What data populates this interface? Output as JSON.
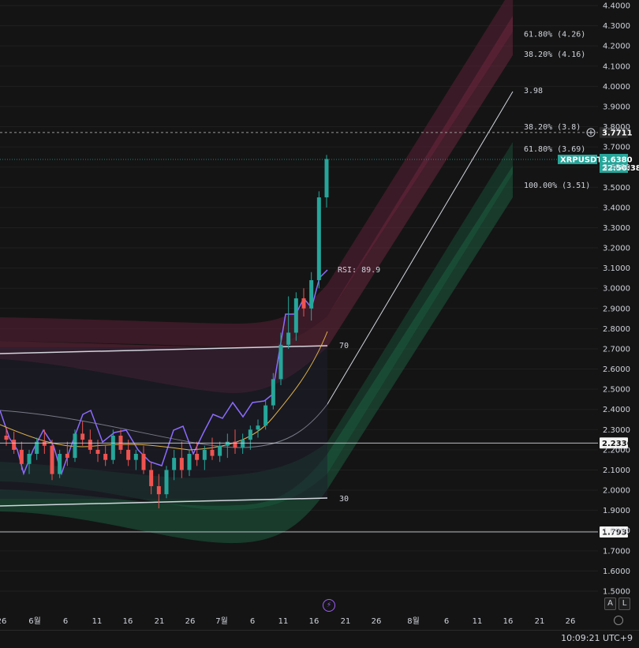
{
  "symbol": "XRPUSDT.P",
  "last_price": "3.6380",
  "countdown": "22:50:38",
  "crosshair_price": "3.7711",
  "clock": "10:09:21 UTC+9",
  "buttons": {
    "auto": "A",
    "log": "L"
  },
  "icons": {
    "crosshair": "plus-circle-icon",
    "lightning": "lightning-icon",
    "settings": "gear-icon"
  },
  "colors": {
    "up": "#26a69a",
    "down": "#ef5350",
    "last_price_tag": "#26a69a",
    "rsi": "#8c6bff",
    "ma": "#e0b34a",
    "basis": "#d1d4dc"
  },
  "chart_data": {
    "type": "candlestick",
    "ylim": [
      1.42,
      4.4
    ],
    "y_ticks": [
      "4.4000",
      "4.3000",
      "4.2000",
      "4.1000",
      "4.0000",
      "3.9000",
      "3.8000",
      "3.7000",
      "3.6000",
      "3.5000",
      "3.4000",
      "3.3000",
      "3.2000",
      "3.1000",
      "3.0000",
      "2.9000",
      "2.8000",
      "2.7000",
      "2.6000",
      "2.5000",
      "2.4000",
      "2.3000",
      "2.2000",
      "2.1000",
      "2.0000",
      "1.9000",
      "1.8000",
      "1.7000",
      "1.6000",
      "1.5000"
    ],
    "x_ticks": [
      "26",
      "6월",
      "6",
      "11",
      "16",
      "21",
      "26",
      "7월",
      "6",
      "11",
      "16",
      "21",
      "26",
      "8월",
      "6",
      "11",
      "16",
      "21",
      "26"
    ],
    "horizontal_levels": [
      {
        "price": 2.2336,
        "label": "2.2336"
      },
      {
        "price": 1.7933,
        "label": "1.7933"
      }
    ],
    "fib_levels": [
      {
        "label": "61.80% (4.26)",
        "price": 4.26
      },
      {
        "label": "38.20% (4.16)",
        "price": 4.16
      },
      {
        "label": "3.98",
        "price": 3.98
      },
      {
        "label": "38.20% (3.8)",
        "price": 3.8
      },
      {
        "label": "61.80% (3.69)",
        "price": 3.69
      },
      {
        "label": "100.00% (3.51)",
        "price": 3.51
      }
    ],
    "rsi": {
      "label": "RSI: 89.9",
      "value": 89.9,
      "upper": 70,
      "lower": 30,
      "upper_label": "70",
      "lower_label": "30"
    },
    "candles": [
      [
        2.27,
        2.31,
        2.22,
        2.25
      ],
      [
        2.25,
        2.29,
        2.18,
        2.2
      ],
      [
        2.2,
        2.24,
        2.1,
        2.13
      ],
      [
        2.13,
        2.2,
        2.08,
        2.18
      ],
      [
        2.18,
        2.26,
        2.15,
        2.24
      ],
      [
        2.24,
        2.3,
        2.18,
        2.22
      ],
      [
        2.22,
        2.25,
        2.05,
        2.08
      ],
      [
        2.08,
        2.2,
        2.06,
        2.18
      ],
      [
        2.18,
        2.24,
        2.12,
        2.16
      ],
      [
        2.16,
        2.3,
        2.14,
        2.28
      ],
      [
        2.28,
        2.34,
        2.22,
        2.25
      ],
      [
        2.25,
        2.3,
        2.18,
        2.2
      ],
      [
        2.2,
        2.25,
        2.14,
        2.18
      ],
      [
        2.18,
        2.22,
        2.12,
        2.15
      ],
      [
        2.15,
        2.3,
        2.13,
        2.27
      ],
      [
        2.27,
        2.3,
        2.18,
        2.2
      ],
      [
        2.2,
        2.25,
        2.12,
        2.15
      ],
      [
        2.15,
        2.2,
        2.1,
        2.18
      ],
      [
        2.18,
        2.22,
        2.08,
        2.1
      ],
      [
        2.1,
        2.14,
        1.98,
        2.02
      ],
      [
        2.02,
        2.08,
        1.91,
        1.98
      ],
      [
        1.98,
        2.12,
        1.96,
        2.1
      ],
      [
        2.1,
        2.2,
        2.05,
        2.16
      ],
      [
        2.16,
        2.24,
        2.06,
        2.1
      ],
      [
        2.1,
        2.2,
        2.07,
        2.18
      ],
      [
        2.18,
        2.24,
        2.12,
        2.15
      ],
      [
        2.15,
        2.22,
        2.1,
        2.2
      ],
      [
        2.2,
        2.26,
        2.15,
        2.17
      ],
      [
        2.17,
        2.24,
        2.14,
        2.22
      ],
      [
        2.22,
        2.28,
        2.16,
        2.24
      ],
      [
        2.24,
        2.3,
        2.18,
        2.21
      ],
      [
        2.21,
        2.28,
        2.18,
        2.25
      ],
      [
        2.25,
        2.32,
        2.2,
        2.3
      ],
      [
        2.3,
        2.35,
        2.26,
        2.32
      ],
      [
        2.32,
        2.45,
        2.3,
        2.42
      ],
      [
        2.42,
        2.58,
        2.4,
        2.55
      ],
      [
        2.55,
        2.78,
        2.52,
        2.72
      ],
      [
        2.72,
        2.96,
        2.7,
        2.78
      ],
      [
        2.78,
        2.98,
        2.74,
        2.95
      ],
      [
        2.95,
        3.0,
        2.86,
        2.9
      ],
      [
        2.9,
        3.08,
        2.84,
        3.04
      ],
      [
        3.04,
        3.48,
        3.0,
        3.45
      ],
      [
        3.45,
        3.66,
        3.4,
        3.64
      ]
    ]
  }
}
